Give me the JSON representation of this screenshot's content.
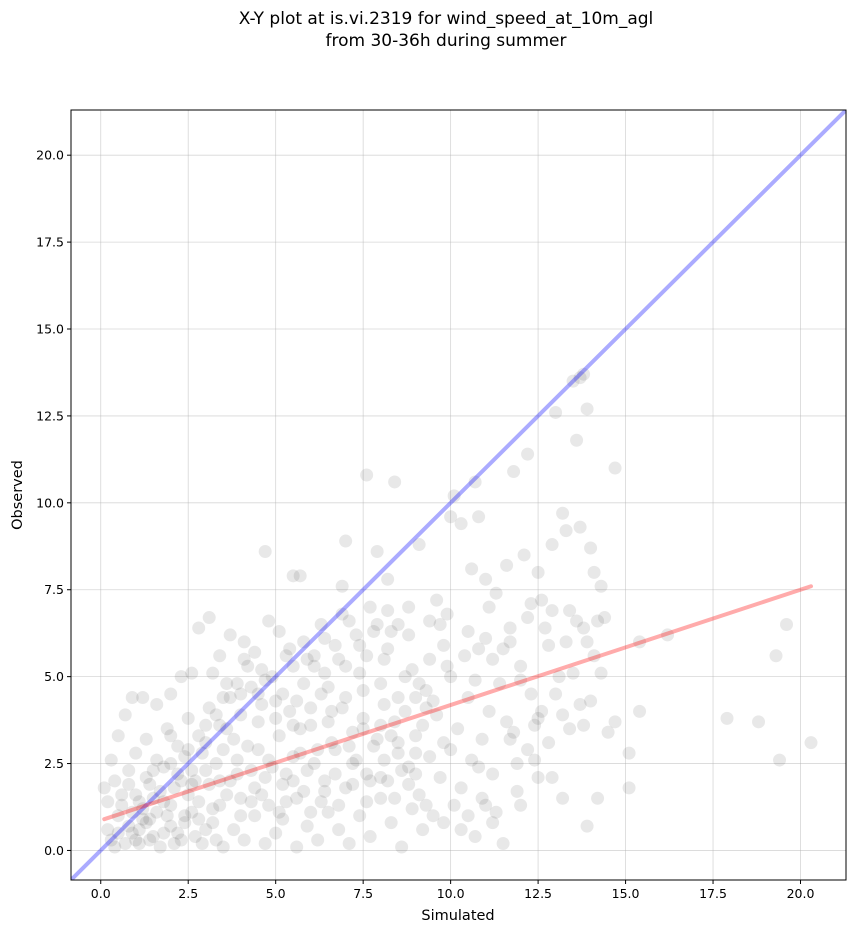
{
  "chart_data": {
    "type": "scatter",
    "title": "X-Y plot at is.vi.2319 for wind_speed_at_10m_agl",
    "subtitle": "from 30-36h during summer",
    "xlabel": "Simulated",
    "ylabel": "Observed",
    "xlim": [
      -0.85,
      21.3
    ],
    "ylim": [
      -0.85,
      21.3
    ],
    "xticks": [
      0.0,
      2.5,
      5.0,
      7.5,
      10.0,
      12.5,
      15.0,
      17.5,
      20.0
    ],
    "yticks": [
      0.0,
      2.5,
      5.0,
      7.5,
      10.0,
      12.5,
      15.0,
      17.5,
      20.0
    ],
    "xtick_labels": [
      "0.0",
      "2.5",
      "5.0",
      "7.5",
      "10.0",
      "12.5",
      "15.0",
      "17.5",
      "20.0"
    ],
    "ytick_labels": [
      "0.0",
      "2.5",
      "5.0",
      "7.5",
      "10.0",
      "12.5",
      "15.0",
      "17.5",
      "20.0"
    ],
    "grid": true,
    "point_color": "#000000",
    "point_alpha": 0.09,
    "points": [
      [
        4.7,
        8.6
      ],
      [
        5.5,
        7.9
      ],
      [
        5.7,
        7.9
      ],
      [
        6.9,
        7.6
      ],
      [
        7.0,
        8.9
      ],
      [
        7.6,
        10.8
      ],
      [
        7.9,
        8.6
      ],
      [
        8.4,
        10.6
      ],
      [
        8.2,
        7.8
      ],
      [
        9.1,
        8.8
      ],
      [
        9.6,
        7.2
      ],
      [
        10.0,
        9.6
      ],
      [
        10.1,
        10.2
      ],
      [
        10.3,
        9.4
      ],
      [
        10.7,
        10.6
      ],
      [
        10.8,
        9.6
      ],
      [
        10.6,
        8.1
      ],
      [
        11.0,
        7.8
      ],
      [
        11.3,
        7.4
      ],
      [
        11.6,
        8.2
      ],
      [
        11.8,
        10.9
      ],
      [
        12.1,
        8.5
      ],
      [
        12.2,
        11.4
      ],
      [
        12.5,
        8.0
      ],
      [
        12.6,
        7.2
      ],
      [
        12.9,
        8.8
      ],
      [
        13.0,
        12.6
      ],
      [
        13.2,
        9.7
      ],
      [
        13.3,
        9.2
      ],
      [
        13.5,
        13.5
      ],
      [
        13.6,
        11.8
      ],
      [
        13.7,
        13.6
      ],
      [
        13.8,
        13.7
      ],
      [
        13.9,
        12.7
      ],
      [
        13.7,
        9.3
      ],
      [
        14.0,
        8.7
      ],
      [
        14.1,
        8.0
      ],
      [
        14.3,
        7.6
      ],
      [
        14.7,
        11.0
      ],
      [
        13.8,
        6.4
      ],
      [
        14.1,
        5.6
      ],
      [
        14.5,
        3.4
      ],
      [
        14.7,
        3.7
      ],
      [
        15.1,
        2.8
      ],
      [
        15.1,
        1.8
      ],
      [
        15.4,
        4.0
      ],
      [
        15.4,
        6.0
      ],
      [
        16.2,
        6.2
      ],
      [
        17.9,
        3.8
      ],
      [
        18.8,
        3.7
      ],
      [
        19.3,
        5.6
      ],
      [
        19.4,
        2.6
      ],
      [
        19.6,
        6.5
      ],
      [
        20.3,
        3.1
      ],
      [
        14.2,
        1.5
      ],
      [
        13.9,
        0.7
      ],
      [
        13.2,
        1.5
      ],
      [
        12.9,
        2.1
      ],
      [
        12.5,
        2.1
      ],
      [
        12.2,
        2.9
      ],
      [
        11.9,
        2.5
      ],
      [
        11.7,
        3.2
      ],
      [
        11.5,
        0.2
      ],
      [
        11.2,
        0.8
      ],
      [
        11.0,
        1.3
      ],
      [
        10.8,
        2.4
      ],
      [
        10.5,
        1.0
      ],
      [
        10.3,
        0.6
      ],
      [
        12.0,
        1.3
      ],
      [
        13.4,
        3.5
      ],
      [
        12.6,
        4.0
      ],
      [
        13.0,
        4.5
      ],
      [
        13.5,
        5.1
      ],
      [
        13.7,
        4.2
      ],
      [
        13.8,
        3.6
      ],
      [
        12.4,
        3.6
      ],
      [
        12.0,
        4.9
      ],
      [
        11.6,
        3.7
      ],
      [
        11.2,
        5.5
      ],
      [
        10.7,
        4.9
      ],
      [
        9.8,
        5.9
      ],
      [
        9.3,
        4.1
      ],
      [
        8.9,
        5.2
      ],
      [
        8.5,
        6.5
      ],
      [
        8.2,
        6.9
      ],
      [
        7.8,
        6.3
      ],
      [
        7.4,
        5.9
      ],
      [
        7.1,
        6.6
      ],
      [
        6.8,
        5.5
      ],
      [
        6.4,
        6.1
      ],
      [
        6.1,
        5.3
      ],
      [
        5.8,
        6.0
      ],
      [
        5.4,
        5.8
      ],
      [
        5.1,
        6.3
      ],
      [
        4.8,
        6.6
      ],
      [
        4.4,
        5.7
      ],
      [
        4.1,
        6.0
      ],
      [
        3.7,
        6.2
      ],
      [
        3.4,
        5.6
      ],
      [
        3.1,
        6.7
      ],
      [
        2.8,
        6.4
      ],
      [
        2.6,
        5.1
      ],
      [
        2.3,
        5.0
      ],
      [
        2.0,
        4.5
      ],
      [
        1.6,
        4.2
      ],
      [
        1.2,
        4.4
      ],
      [
        0.9,
        4.4
      ],
      [
        0.7,
        3.9
      ],
      [
        0.5,
        3.3
      ],
      [
        0.3,
        2.6
      ],
      [
        0.1,
        1.8
      ],
      [
        0.2,
        0.6
      ],
      [
        0.4,
        0.1
      ],
      [
        0.6,
        1.3
      ],
      [
        0.9,
        0.5
      ],
      [
        1.1,
        0.2
      ],
      [
        1.4,
        0.9
      ],
      [
        1.7,
        0.1
      ],
      [
        2.0,
        0.7
      ],
      [
        2.3,
        0.3
      ],
      [
        2.6,
        1.1
      ],
      [
        2.9,
        0.2
      ],
      [
        3.2,
        0.8
      ],
      [
        3.5,
        0.1
      ],
      [
        3.8,
        0.6
      ],
      [
        4.1,
        0.3
      ],
      [
        4.4,
        1.0
      ],
      [
        4.7,
        0.2
      ],
      [
        5.0,
        0.5
      ],
      [
        5.3,
        1.4
      ],
      [
        5.6,
        0.1
      ],
      [
        5.9,
        0.7
      ],
      [
        6.2,
        0.3
      ],
      [
        6.5,
        1.1
      ],
      [
        6.8,
        0.6
      ],
      [
        7.1,
        0.2
      ],
      [
        7.4,
        1.0
      ],
      [
        7.7,
        0.4
      ],
      [
        8.0,
        1.5
      ],
      [
        8.3,
        0.8
      ],
      [
        8.6,
        0.1
      ],
      [
        8.9,
        1.2
      ],
      [
        9.2,
        0.6
      ],
      [
        9.5,
        1.0
      ],
      [
        9.8,
        0.8
      ],
      [
        1.0,
        1.6
      ],
      [
        1.3,
        2.1
      ],
      [
        1.5,
        1.5
      ],
      [
        1.8,
        2.4
      ],
      [
        2.1,
        1.8
      ],
      [
        2.4,
        2.7
      ],
      [
        2.7,
        2.0
      ],
      [
        3.0,
        3.1
      ],
      [
        3.3,
        2.5
      ],
      [
        3.6,
        3.5
      ],
      [
        3.9,
        2.2
      ],
      [
        4.2,
        3.0
      ],
      [
        4.5,
        3.7
      ],
      [
        4.8,
        2.6
      ],
      [
        5.1,
        3.3
      ],
      [
        5.4,
        4.0
      ],
      [
        5.7,
        2.8
      ],
      [
        6.0,
        3.6
      ],
      [
        6.3,
        4.5
      ],
      [
        6.6,
        3.1
      ],
      [
        6.9,
        4.1
      ],
      [
        7.2,
        3.4
      ],
      [
        7.5,
        4.6
      ],
      [
        7.8,
        3.0
      ],
      [
        8.1,
        4.2
      ],
      [
        8.4,
        3.7
      ],
      [
        8.7,
        5.0
      ],
      [
        9.0,
        3.3
      ],
      [
        9.3,
        4.6
      ],
      [
        9.6,
        3.9
      ],
      [
        9.9,
        5.3
      ],
      [
        10.2,
        3.5
      ],
      [
        10.5,
        4.4
      ],
      [
        10.8,
        5.8
      ],
      [
        11.1,
        4.0
      ],
      [
        11.4,
        4.8
      ],
      [
        11.7,
        6.0
      ],
      [
        12.0,
        5.3
      ],
      [
        12.3,
        4.5
      ],
      [
        12.7,
        6.4
      ],
      [
        13.1,
        5.0
      ],
      [
        13.4,
        6.9
      ],
      [
        13.9,
        6.0
      ],
      [
        14.3,
        5.1
      ],
      [
        14.0,
        4.3
      ],
      [
        0.5,
        1.0
      ],
      [
        0.8,
        0.7
      ],
      [
        1.2,
        1.2
      ],
      [
        1.5,
        0.4
      ],
      [
        1.9,
        1.0
      ],
      [
        2.2,
        0.5
      ],
      [
        2.5,
        1.6
      ],
      [
        2.8,
        0.9
      ],
      [
        3.1,
        1.9
      ],
      [
        3.4,
        1.3
      ],
      [
        3.7,
        2.0
      ],
      [
        4.0,
        1.5
      ],
      [
        4.3,
        2.3
      ],
      [
        4.6,
        1.6
      ],
      [
        4.9,
        2.4
      ],
      [
        5.2,
        1.9
      ],
      [
        5.5,
        2.7
      ],
      [
        5.8,
        1.7
      ],
      [
        6.1,
        2.5
      ],
      [
        6.4,
        2.0
      ],
      [
        6.7,
        2.9
      ],
      [
        7.0,
        1.8
      ],
      [
        7.3,
        2.6
      ],
      [
        7.6,
        2.2
      ],
      [
        7.9,
        3.2
      ],
      [
        8.2,
        2.0
      ],
      [
        8.5,
        2.8
      ],
      [
        8.8,
        2.4
      ],
      [
        9.1,
        1.6
      ],
      [
        9.4,
        2.7
      ],
      [
        9.7,
        2.1
      ],
      [
        10.0,
        2.9
      ],
      [
        10.3,
        1.8
      ],
      [
        10.6,
        2.6
      ],
      [
        10.9,
        1.5
      ],
      [
        11.2,
        2.2
      ],
      [
        0.4,
        2.0
      ],
      [
        0.6,
        1.6
      ],
      [
        0.8,
        2.3
      ],
      [
        1.0,
        2.8
      ],
      [
        1.3,
        3.2
      ],
      [
        1.6,
        2.6
      ],
      [
        1.9,
        3.5
      ],
      [
        2.2,
        3.0
      ],
      [
        2.5,
        3.8
      ],
      [
        2.8,
        3.3
      ],
      [
        3.1,
        4.1
      ],
      [
        3.4,
        3.6
      ],
      [
        3.7,
        4.4
      ],
      [
        4.0,
        3.9
      ],
      [
        4.3,
        4.7
      ],
      [
        4.6,
        4.2
      ],
      [
        4.9,
        5.0
      ],
      [
        5.2,
        4.5
      ],
      [
        5.5,
        5.3
      ],
      [
        5.8,
        4.8
      ],
      [
        6.1,
        5.6
      ],
      [
        6.4,
        5.1
      ],
      [
        6.7,
        5.9
      ],
      [
        7.0,
        5.3
      ],
      [
        7.3,
        6.2
      ],
      [
        7.6,
        5.6
      ],
      [
        7.9,
        6.5
      ],
      [
        8.2,
        5.8
      ],
      [
        8.5,
        4.4
      ],
      [
        8.8,
        6.2
      ],
      [
        9.1,
        4.8
      ],
      [
        9.4,
        5.5
      ],
      [
        9.7,
        6.5
      ],
      [
        10.0,
        5.0
      ],
      [
        0.3,
        0.3
      ],
      [
        0.7,
        0.2
      ],
      [
        1.1,
        0.6
      ],
      [
        1.4,
        0.3
      ],
      [
        1.8,
        0.5
      ],
      [
        2.1,
        0.2
      ],
      [
        2.4,
        0.8
      ],
      [
        2.7,
        0.4
      ],
      [
        3.0,
        0.6
      ],
      [
        3.3,
        0.3
      ],
      [
        1.2,
        0.9
      ],
      [
        1.6,
        1.1
      ],
      [
        2.0,
        1.3
      ],
      [
        2.4,
        1.0
      ],
      [
        2.8,
        1.4
      ],
      [
        3.2,
        1.2
      ],
      [
        3.6,
        1.6
      ],
      [
        4.0,
        1.0
      ],
      [
        4.4,
        1.8
      ],
      [
        4.8,
        1.3
      ],
      [
        5.2,
        0.9
      ],
      [
        5.6,
        1.5
      ],
      [
        6.0,
        1.1
      ],
      [
        6.4,
        1.7
      ],
      [
        6.8,
        1.3
      ],
      [
        7.2,
        1.9
      ],
      [
        7.6,
        1.4
      ],
      [
        8.0,
        2.1
      ],
      [
        8.4,
        1.5
      ],
      [
        8.8,
        1.9
      ],
      [
        0.9,
        1.1
      ],
      [
        1.1,
        1.4
      ],
      [
        1.3,
        0.8
      ],
      [
        1.7,
        1.7
      ],
      [
        2.3,
        2.0
      ],
      [
        2.6,
        2.3
      ],
      [
        3.5,
        2.9
      ],
      [
        3.8,
        3.2
      ],
      [
        4.5,
        2.9
      ],
      [
        5.0,
        3.8
      ],
      [
        5.3,
        2.2
      ],
      [
        5.7,
        3.5
      ],
      [
        6.2,
        2.9
      ],
      [
        6.6,
        4.0
      ],
      [
        7.1,
        3.0
      ],
      [
        7.5,
        3.8
      ],
      [
        8.0,
        4.8
      ],
      [
        8.3,
        3.3
      ],
      [
        8.7,
        4.0
      ],
      [
        9.2,
        3.6
      ],
      [
        2.0,
        2.5
      ],
      [
        2.9,
        2.8
      ],
      [
        3.3,
        3.9
      ],
      [
        3.9,
        4.8
      ],
      [
        4.2,
        5.3
      ],
      [
        4.7,
        4.9
      ],
      [
        5.6,
        4.3
      ],
      [
        6.5,
        4.7
      ],
      [
        7.4,
        5.1
      ],
      [
        8.1,
        5.5
      ],
      [
        9.5,
        4.3
      ],
      [
        10.4,
        5.6
      ],
      [
        11.0,
        6.1
      ],
      [
        11.5,
        5.8
      ],
      [
        12.2,
        6.7
      ],
      [
        12.8,
        5.9
      ],
      [
        13.3,
        6.0
      ],
      [
        14.4,
        6.7
      ],
      [
        10.9,
        3.2
      ],
      [
        11.8,
        3.4
      ],
      [
        12.5,
        3.8
      ],
      [
        13.2,
        3.9
      ],
      [
        9.0,
        2.8
      ],
      [
        9.8,
        3.1
      ],
      [
        10.1,
        1.3
      ],
      [
        10.7,
        0.4
      ],
      [
        11.3,
        1.1
      ],
      [
        11.9,
        1.7
      ],
      [
        12.4,
        2.6
      ],
      [
        12.8,
        3.1
      ],
      [
        1.4,
        1.9
      ],
      [
        1.8,
        1.4
      ],
      [
        2.2,
        2.2
      ],
      [
        2.6,
        1.9
      ],
      [
        3.0,
        2.3
      ],
      [
        3.4,
        2.0
      ],
      [
        3.9,
        2.6
      ],
      [
        4.3,
        1.4
      ],
      [
        4.7,
        2.1
      ],
      [
        5.1,
        1.1
      ],
      [
        5.5,
        2.0
      ],
      [
        5.9,
        2.3
      ],
      [
        6.3,
        1.4
      ],
      [
        6.7,
        2.2
      ],
      [
        7.2,
        2.5
      ],
      [
        7.7,
        2.0
      ],
      [
        8.1,
        2.6
      ],
      [
        8.6,
        2.3
      ],
      [
        9.0,
        2.2
      ],
      [
        9.3,
        1.3
      ],
      [
        0.2,
        1.4
      ],
      [
        0.5,
        0.5
      ],
      [
        0.8,
        1.9
      ],
      [
        1.0,
        0.3
      ],
      [
        1.5,
        2.3
      ],
      [
        2.0,
        3.3
      ],
      [
        2.5,
        2.9
      ],
      [
        3.0,
        3.6
      ],
      [
        3.5,
        4.4
      ],
      [
        4.0,
        4.5
      ],
      [
        4.5,
        4.5
      ],
      [
        5.0,
        4.3
      ],
      [
        5.5,
        3.6
      ],
      [
        6.0,
        4.1
      ],
      [
        6.5,
        3.7
      ],
      [
        7.0,
        4.4
      ],
      [
        7.5,
        3.5
      ],
      [
        8.0,
        3.6
      ],
      [
        8.5,
        3.1
      ],
      [
        9.0,
        4.4
      ],
      [
        3.2,
        5.1
      ],
      [
        3.6,
        4.8
      ],
      [
        4.1,
        5.5
      ],
      [
        4.6,
        5.2
      ],
      [
        5.3,
        5.6
      ],
      [
        5.9,
        5.5
      ],
      [
        6.3,
        6.5
      ],
      [
        6.9,
        6.8
      ],
      [
        7.7,
        7.0
      ],
      [
        8.3,
        6.3
      ],
      [
        8.8,
        7.0
      ],
      [
        9.4,
        6.6
      ],
      [
        9.9,
        6.8
      ],
      [
        10.5,
        6.3
      ],
      [
        11.1,
        7.0
      ],
      [
        11.7,
        6.4
      ],
      [
        12.3,
        7.1
      ],
      [
        12.9,
        6.9
      ],
      [
        13.6,
        6.6
      ],
      [
        14.2,
        6.6
      ]
    ],
    "identity_line": {
      "name": "",
      "color": "#0000ff",
      "alpha": 0.33,
      "x": [
        -0.85,
        21.3
      ],
      "y": [
        -0.85,
        21.3
      ]
    },
    "fit_line": {
      "name": "",
      "color": "#ff0000",
      "alpha": 0.33,
      "x": [
        0.1,
        20.3
      ],
      "y": [
        0.9,
        7.6
      ]
    }
  }
}
